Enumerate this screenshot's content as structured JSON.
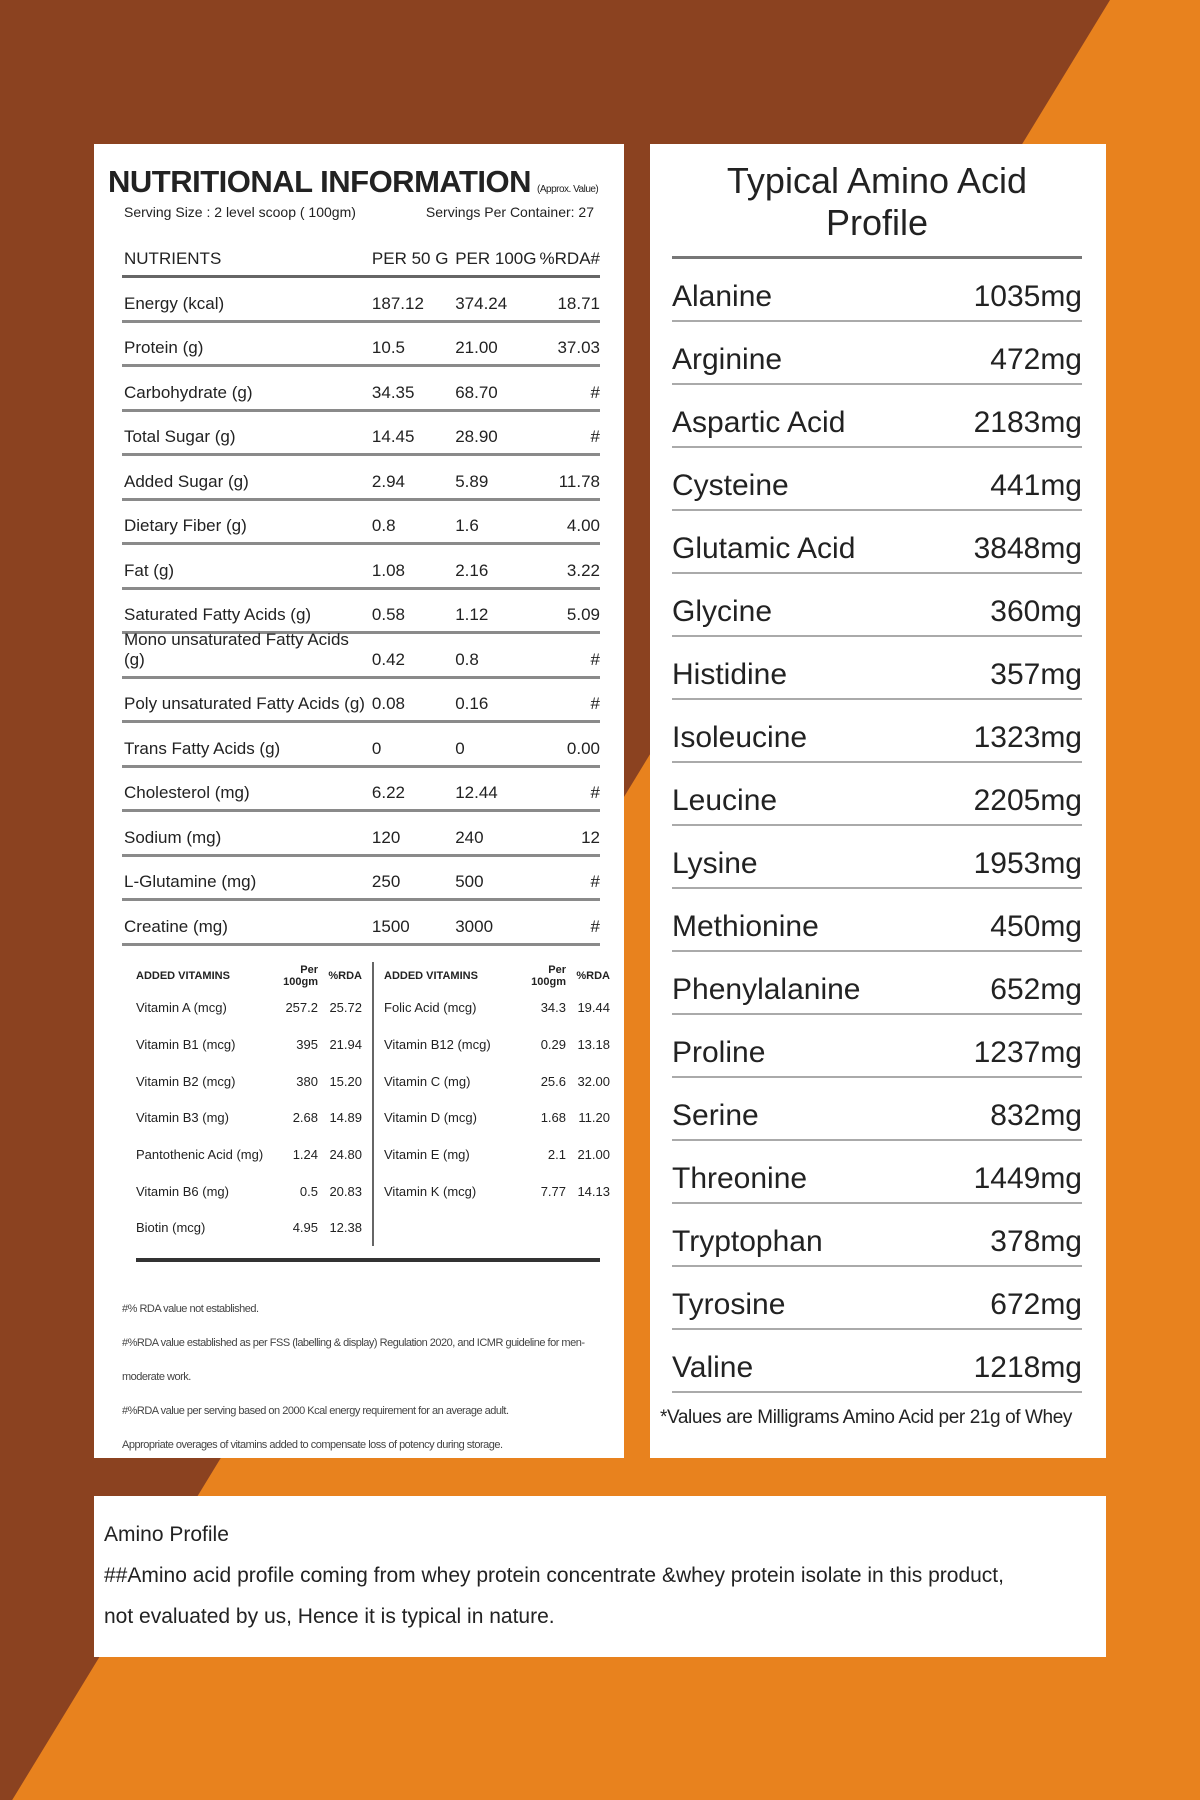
{
  "nutrition": {
    "title": "NUTRITIONAL INFORMATION",
    "title_note": "(Approx. Value)",
    "serving_size": "Serving Size : 2 level scoop ( 100gm)",
    "servings": "Servings Per Container: 27",
    "header": [
      "NUTRIENTS",
      "PER 50 G",
      "PER 100G",
      "%RDA#"
    ],
    "rows": [
      [
        "Energy (kcal)",
        "187.12",
        "374.24",
        "18.71"
      ],
      [
        "Protein (g)",
        "10.5",
        "21.00",
        "37.03"
      ],
      [
        "Carbohydrate (g)",
        "34.35",
        "68.70",
        "#"
      ],
      [
        "Total Sugar (g)",
        "14.45",
        "28.90",
        "#"
      ],
      [
        "Added Sugar (g)",
        "2.94",
        "5.89",
        "11.78"
      ],
      [
        "Dietary Fiber (g)",
        "0.8",
        "1.6",
        "4.00"
      ],
      [
        "Fat (g)",
        "1.08",
        "2.16",
        "3.22"
      ],
      [
        "Saturated Fatty Acids (g)",
        "0.58",
        "1.12",
        "5.09"
      ],
      [
        "Mono unsaturated Fatty Acids (g)",
        "0.42",
        "0.8",
        "#"
      ],
      [
        "Poly unsaturated Fatty Acids (g)",
        "0.08",
        "0.16",
        "#"
      ],
      [
        "Trans Fatty Acids (g)",
        "0",
        "0",
        "0.00"
      ],
      [
        "Cholesterol (mg)",
        "6.22",
        "12.44",
        "#"
      ],
      [
        "Sodium (mg)",
        "120",
        "240",
        "12"
      ],
      [
        "L-Glutamine (mg)",
        "250",
        "500",
        "#"
      ],
      [
        "Creatine (mg)",
        "1500",
        "3000",
        "#"
      ]
    ],
    "vitamins": [
      {
        "header": [
          "ADDED VITAMINS",
          "Per 100gm",
          "%RDA"
        ],
        "rows": [
          [
            "Vitamin A (mcg)",
            "257.2",
            "25.72"
          ],
          [
            "Vitamin B1 (mcg)",
            "395",
            "21.94"
          ],
          [
            "Vitamin B2 (mcg)",
            "380",
            "15.20"
          ],
          [
            "Vitamin B3 (mg)",
            "2.68",
            "14.89"
          ],
          [
            "Pantothenic Acid (mg)",
            "1.24",
            "24.80"
          ],
          [
            "Vitamin B6 (mg)",
            "0.5",
            "20.83"
          ],
          [
            "Biotin (mcg)",
            "4.95",
            "12.38"
          ]
        ]
      },
      {
        "header": [
          "ADDED VITAMINS",
          "Per 100gm",
          "%RDA"
        ],
        "rows": [
          [
            "Folic Acid (mcg)",
            "34.3",
            "19.44"
          ],
          [
            "Vitamin B12 (mcg)",
            "0.29",
            "13.18"
          ],
          [
            "Vitamin C (mg)",
            "25.6",
            "32.00"
          ],
          [
            "Vitamin D (mcg)",
            "1.68",
            "11.20"
          ],
          [
            "Vitamin E (mg)",
            "2.1",
            "21.00"
          ],
          [
            "Vitamin K (mcg)",
            "7.77",
            "14.13"
          ]
        ]
      }
    ],
    "footnotes": [
      "#% RDA value not established.",
      "#%RDA value established as per FSS (labelling & display) Regulation 2020, and ICMR guideline for men-moderate work.",
      "#%RDA value per serving based on 2000 Kcal energy requirement for an average adult.",
      "Appropriate overages of vitamins added to compensate loss of potency during storage."
    ]
  },
  "amino": {
    "title": "Typical Amino Acid Profile",
    "rows": [
      [
        "Alanine",
        "1035mg"
      ],
      [
        "Arginine",
        "472mg"
      ],
      [
        "Aspartic Acid",
        "2183mg"
      ],
      [
        "Cysteine",
        "441mg"
      ],
      [
        "Glutamic Acid",
        "3848mg"
      ],
      [
        "Glycine",
        "360mg"
      ],
      [
        "Histidine",
        "357mg"
      ],
      [
        "Isoleucine",
        "1323mg"
      ],
      [
        "Leucine",
        "2205mg"
      ],
      [
        "Lysine",
        "1953mg"
      ],
      [
        "Methionine",
        "450mg"
      ],
      [
        "Phenylalanine",
        "652mg"
      ],
      [
        "Proline",
        "1237mg"
      ],
      [
        "Serine",
        "832mg"
      ],
      [
        "Threonine",
        "1449mg"
      ],
      [
        "Tryptophan",
        "378mg"
      ],
      [
        "Tyrosine",
        "672mg"
      ],
      [
        "Valine",
        "1218mg"
      ]
    ],
    "note": "*Values are Milligrams Amino Acid per 21g of Whey"
  },
  "footer": {
    "lines": [
      "Amino Profile",
      "##Amino acid profile coming from whey protein concentrate &whey protein isolate in this product,",
      "not evaluated by us, Hence it is typical in nature."
    ]
  }
}
